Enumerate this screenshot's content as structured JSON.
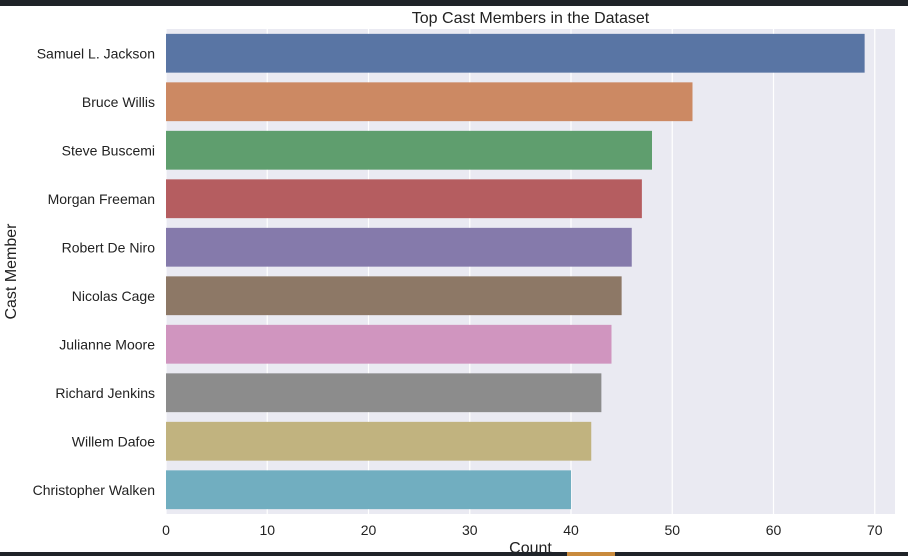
{
  "chart_data": {
    "type": "bar",
    "orientation": "horizontal",
    "title": "Top Cast Members in the Dataset",
    "xlabel": "Count",
    "ylabel": "Cast Member",
    "xlim": [
      0,
      72
    ],
    "x_ticks": [
      0,
      10,
      20,
      30,
      40,
      50,
      60,
      70
    ],
    "grid": true,
    "categories": [
      "Samuel L. Jackson",
      "Bruce Willis",
      "Steve Buscemi",
      "Morgan Freeman",
      "Robert De Niro",
      "Nicolas Cage",
      "Julianne Moore",
      "Richard Jenkins",
      "Willem Dafoe",
      "Christopher Walken"
    ],
    "values": [
      69,
      52,
      48,
      47,
      46,
      45,
      44,
      43,
      42,
      40
    ],
    "colors": [
      "#5975a4",
      "#cc8963",
      "#5f9e6e",
      "#b55d60",
      "#857aab",
      "#8d7866",
      "#d095bf",
      "#8c8c8c",
      "#c1b37f",
      "#71aec0"
    ],
    "background": "#eaeaf2",
    "grid_color": "#ffffff"
  }
}
